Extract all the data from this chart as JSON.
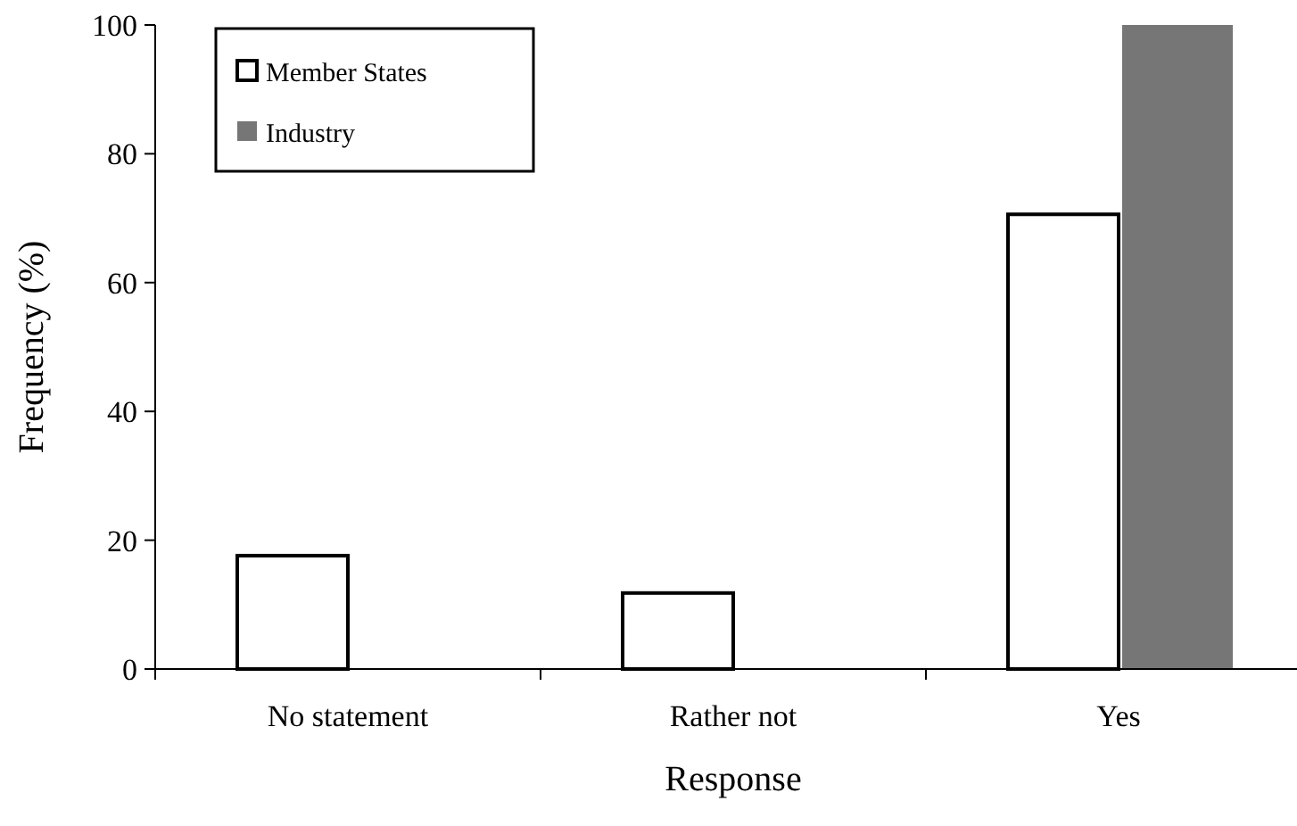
{
  "chart_data": {
    "type": "bar",
    "xlabel": "Response",
    "ylabel": "Frequency (%)",
    "categories": [
      "No statement",
      "Rather not",
      "Yes"
    ],
    "series": [
      {
        "name": "Member States",
        "color": "#ffffff",
        "values": [
          17.6,
          11.8,
          70.6
        ]
      },
      {
        "name": "Industry",
        "color": "#767676",
        "values": [
          null,
          null,
          100
        ]
      }
    ],
    "ylim": [
      0,
      100
    ],
    "yticks": [
      0,
      20,
      40,
      60,
      80,
      100
    ],
    "grid": false,
    "legend": "top left"
  }
}
